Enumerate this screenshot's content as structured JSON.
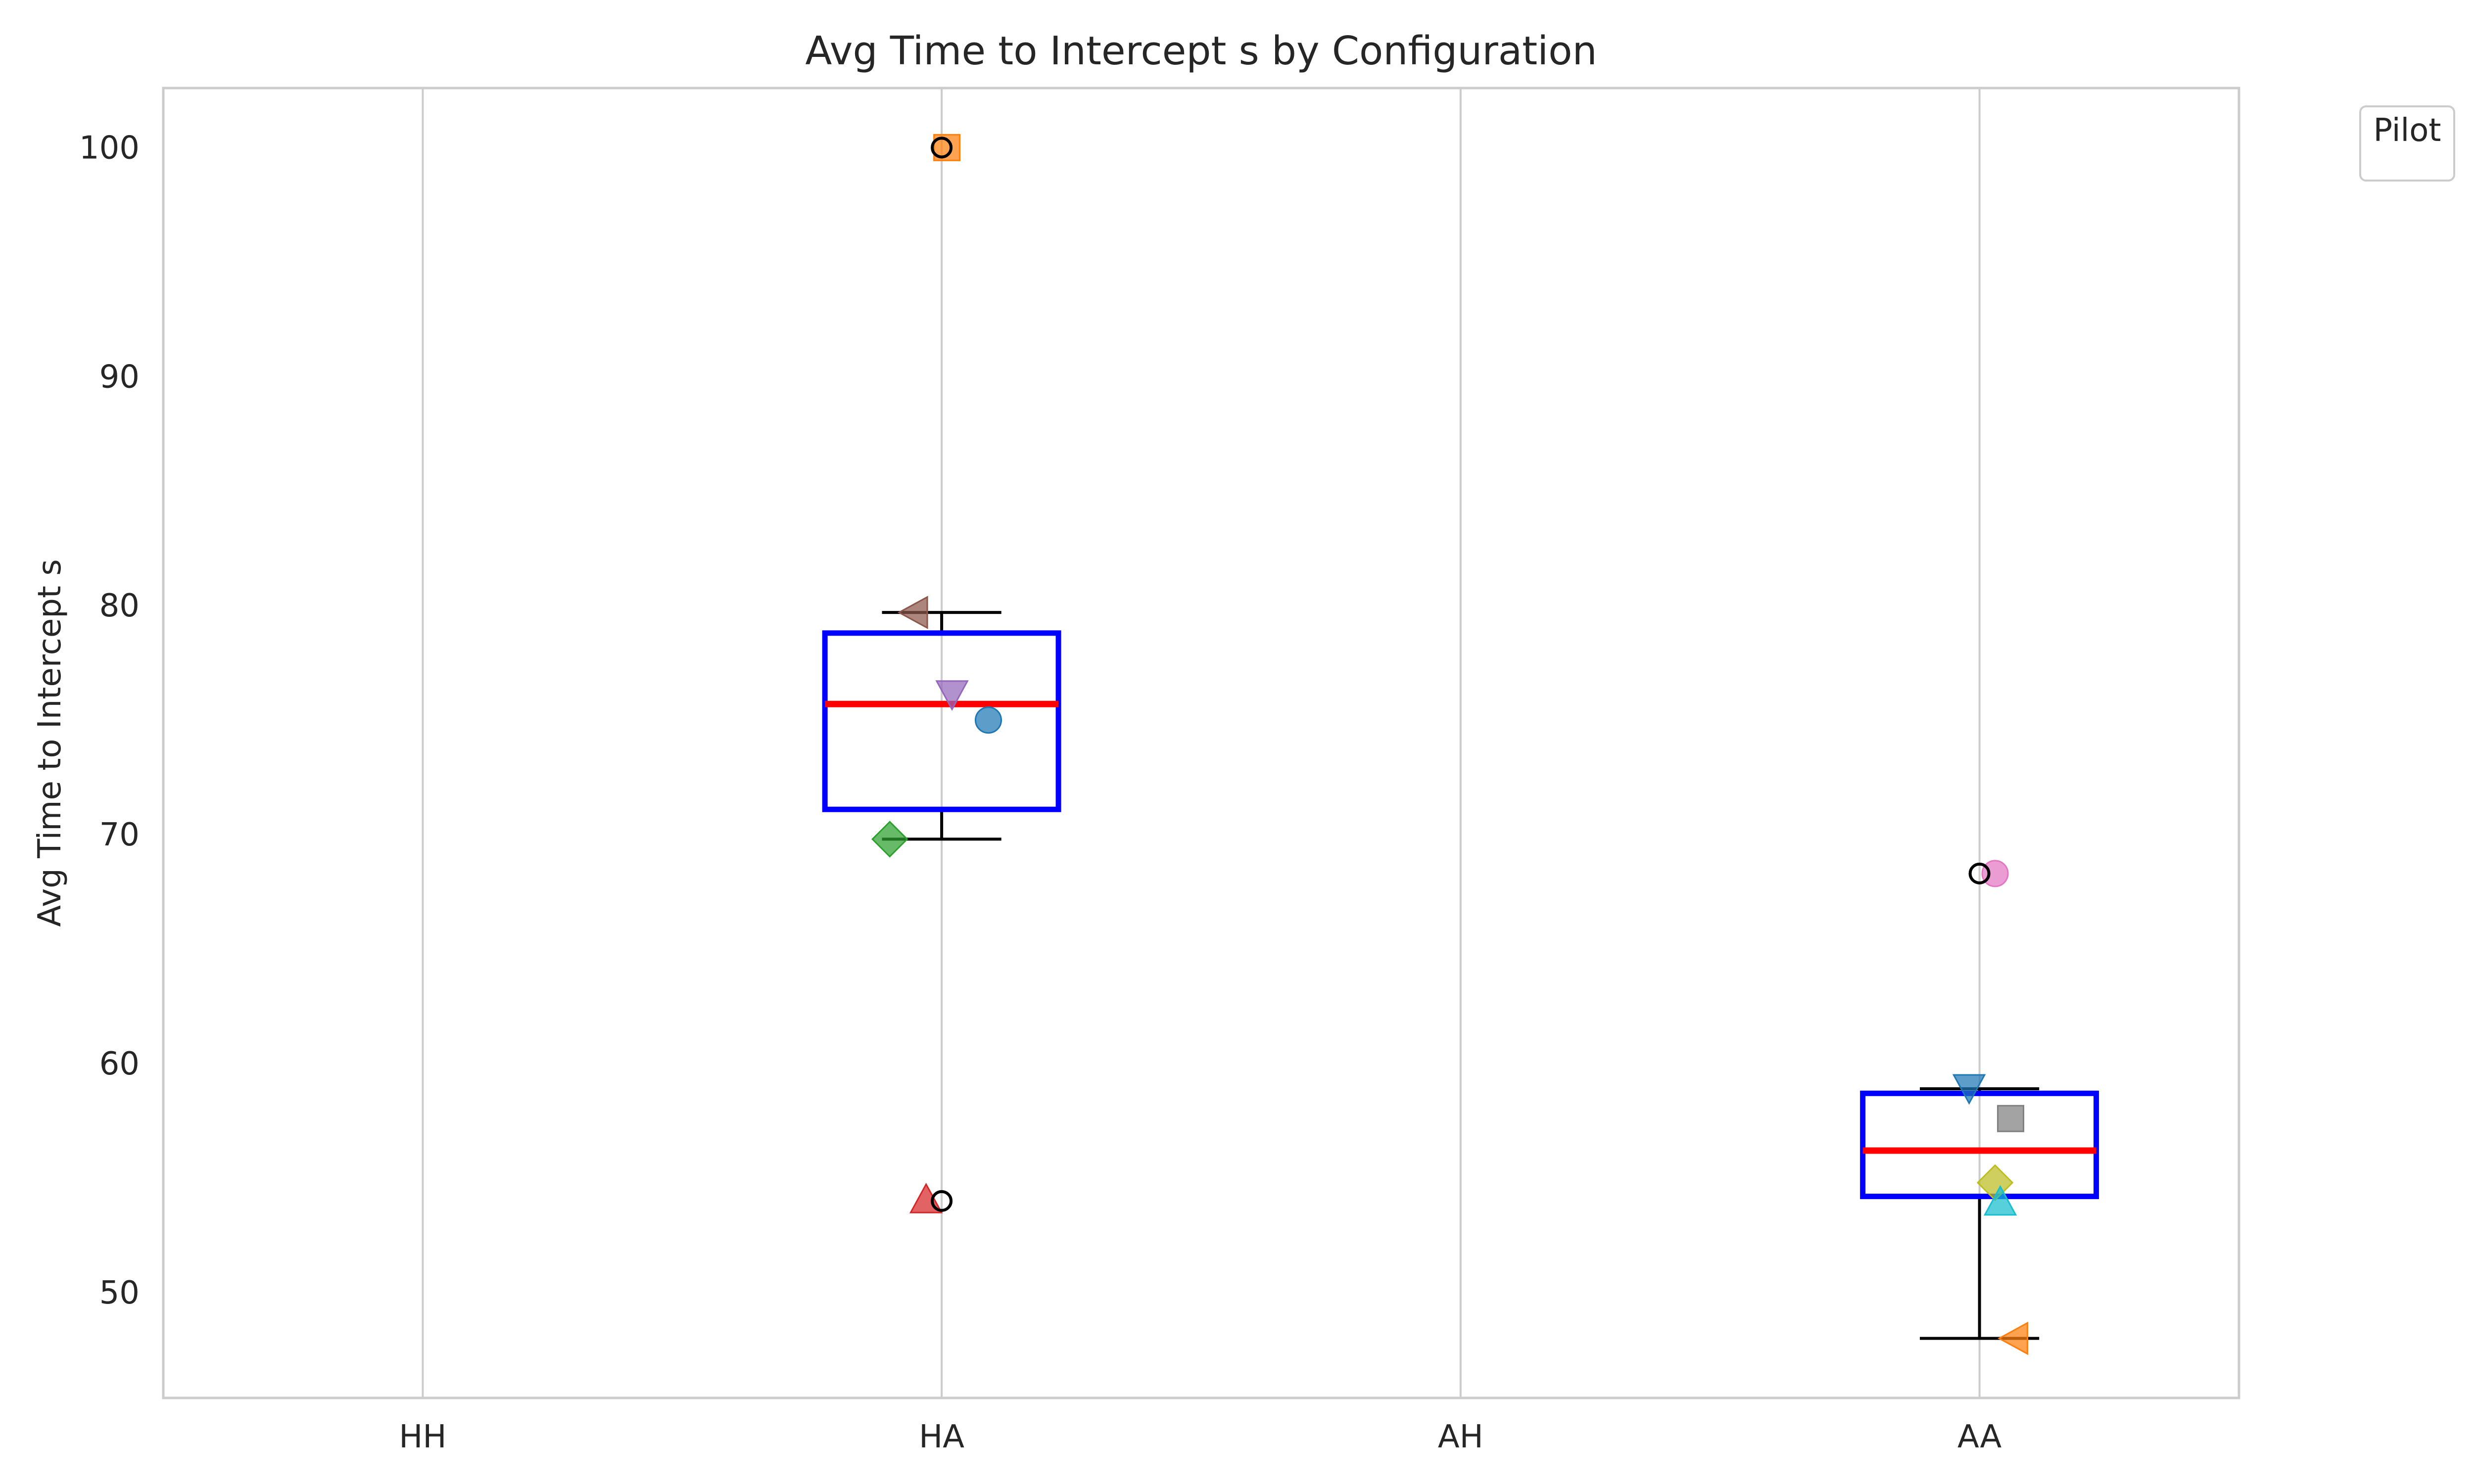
{
  "chart_data": {
    "type": "box",
    "title": "Avg Time to Intercept s by Configuration",
    "xlabel": "",
    "ylabel": "Avg Time to Intercept s",
    "categories": [
      "HH",
      "HA",
      "AH",
      "AA"
    ],
    "ylim": [
      45.4,
      102.6
    ],
    "yticks": [
      50,
      60,
      70,
      80,
      90,
      100
    ],
    "grid": "x",
    "legend": {
      "title": "Pilot",
      "placement": "top-right, outside plot"
    },
    "colors": {
      "box": "#0000ff",
      "median": "#ff0000",
      "whisker": "#000000",
      "grid": "#cccccc",
      "spine": "#cccccc"
    },
    "boxes": [
      {
        "category": "HA",
        "q1": 71.1,
        "median": 75.7,
        "q3": 78.8,
        "whisker_low": 69.8,
        "whisker_high": 79.7,
        "outliers": [
          100.0,
          54.0
        ]
      },
      {
        "category": "AA",
        "q1": 54.2,
        "median": 56.2,
        "q3": 58.7,
        "whisker_low": 48.0,
        "whisker_high": 58.9,
        "outliers": [
          68.3
        ]
      }
    ],
    "points": [
      {
        "category": "HA",
        "jitter": 0.01,
        "y": 100.0,
        "marker": "square",
        "color": "#ff7f0e"
      },
      {
        "category": "HA",
        "jitter": -0.05,
        "y": 79.7,
        "marker": "triangle-left",
        "color": "#8c564b"
      },
      {
        "category": "HA",
        "jitter": 0.02,
        "y": 76.2,
        "marker": "triangle-down",
        "color": "#9467bd"
      },
      {
        "category": "HA",
        "jitter": 0.09,
        "y": 75.0,
        "marker": "circle",
        "color": "#1f77b4"
      },
      {
        "category": "HA",
        "jitter": -0.1,
        "y": 69.8,
        "marker": "diamond",
        "color": "#2ca02c"
      },
      {
        "category": "HA",
        "jitter": -0.03,
        "y": 54.0,
        "marker": "triangle-up",
        "color": "#d62728"
      },
      {
        "category": "AA",
        "jitter": 0.03,
        "y": 68.3,
        "marker": "circle",
        "color": "#e377c2"
      },
      {
        "category": "AA",
        "jitter": -0.02,
        "y": 59.0,
        "marker": "triangle-down",
        "color": "#1f77b4"
      },
      {
        "category": "AA",
        "jitter": 0.06,
        "y": 57.6,
        "marker": "square",
        "color": "#7f7f7f"
      },
      {
        "category": "AA",
        "jitter": 0.03,
        "y": 54.8,
        "marker": "diamond",
        "color": "#bcbd22"
      },
      {
        "category": "AA",
        "jitter": 0.04,
        "y": 53.9,
        "marker": "triangle-up",
        "color": "#17becf"
      },
      {
        "category": "AA",
        "jitter": 0.07,
        "y": 48.0,
        "marker": "triangle-left",
        "color": "#ff7f0e"
      }
    ]
  }
}
